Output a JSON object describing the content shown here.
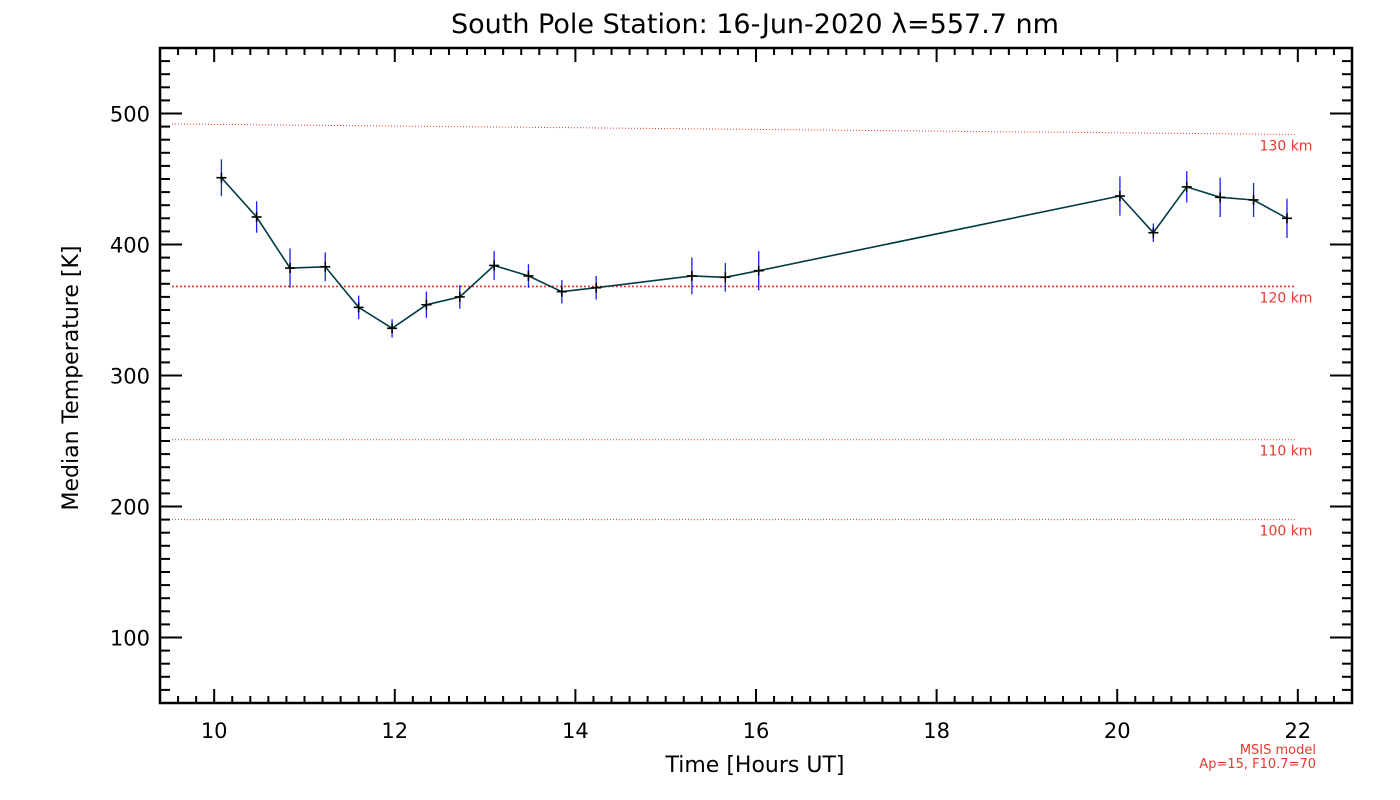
{
  "chart_data": {
    "type": "line",
    "title": "South Pole Station: 16-Jun-2020 λ=557.7 nm",
    "xlabel": "Time [Hours UT]",
    "ylabel": "Median Temperature [K]",
    "xlim": [
      9.4,
      22.6
    ],
    "ylim": [
      50,
      550
    ],
    "x_ticks": [
      10,
      12,
      14,
      16,
      18,
      20,
      22
    ],
    "y_ticks": [
      100,
      200,
      300,
      400,
      500
    ],
    "x_tick_labels": [
      "10",
      "12",
      "14",
      "16",
      "18",
      "20",
      "22"
    ],
    "y_tick_labels": [
      "100",
      "200",
      "300",
      "400",
      "500"
    ],
    "series": [
      {
        "name": "Median Temperature",
        "color": "#003b46",
        "marker_color": "#000000",
        "errorbar_color": "#1a1aff",
        "x": [
          10.08,
          10.47,
          10.84,
          11.23,
          11.6,
          11.97,
          12.35,
          12.72,
          13.1,
          13.48,
          13.85,
          14.23,
          15.29,
          15.66,
          16.03,
          20.03,
          20.4,
          20.77,
          21.14,
          21.51,
          21.88
        ],
        "y": [
          451,
          421,
          382,
          383,
          352,
          336,
          354,
          360,
          384,
          376,
          364,
          367,
          376,
          375,
          380,
          437,
          409,
          444,
          436,
          434,
          420
        ],
        "err": [
          14,
          12,
          15,
          11,
          9,
          7,
          10,
          9,
          11,
          9,
          9,
          9,
          14,
          11,
          15,
          15,
          7,
          12,
          15,
          13,
          15
        ]
      }
    ],
    "reference_lines": [
      {
        "label": "130 km",
        "y_start": 492,
        "y_end": 484,
        "color": "#e8392d"
      },
      {
        "label": "120 km",
        "y_start": 368,
        "y_end": 368,
        "color": "#e8392d"
      },
      {
        "label": "110 km",
        "y_start": 251,
        "y_end": 251,
        "color": "#e8392d"
      },
      {
        "label": "100 km",
        "y_start": 190,
        "y_end": 190,
        "color": "#e8392d"
      }
    ],
    "annotations": [
      "MSIS model",
      "Ap=15, F10.7=70"
    ],
    "grid": false
  }
}
